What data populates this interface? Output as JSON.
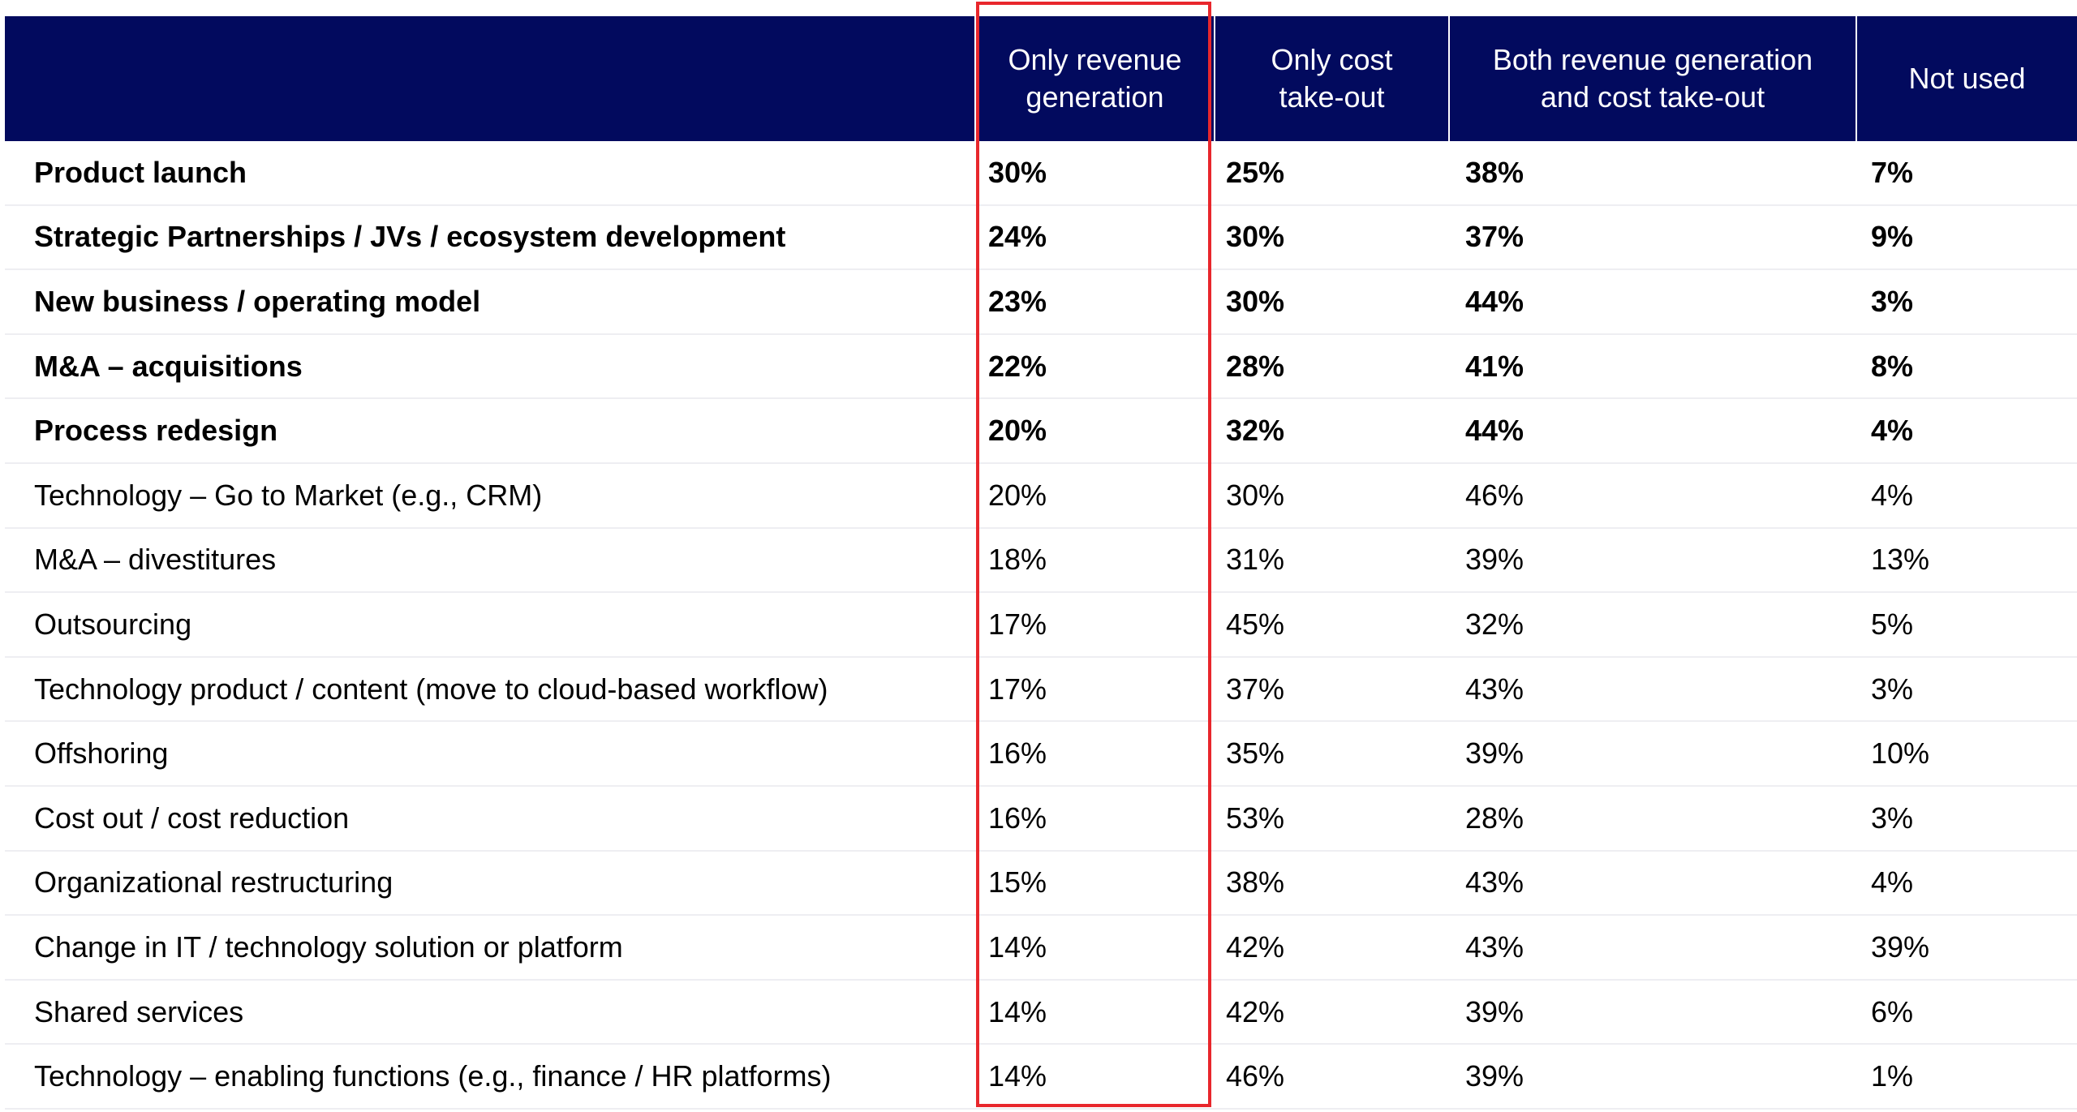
{
  "chart_data": {
    "type": "table",
    "columns": [
      "",
      "Only revenue generation",
      "Only cost take-out",
      "Both revenue generation and cost take-out",
      "Not used"
    ],
    "header_lines": [
      [
        ""
      ],
      [
        "Only revenue",
        "generation"
      ],
      [
        "Only cost",
        "take-out"
      ],
      [
        "Both revenue generation",
        "and cost take-out"
      ],
      [
        "Not used"
      ]
    ],
    "rows": [
      {
        "label": "Product launch",
        "values": [
          "30%",
          "25%",
          "38%",
          "7%"
        ],
        "bold": true
      },
      {
        "label": "Strategic Partnerships / JVs / ecosystem development",
        "values": [
          "24%",
          "30%",
          "37%",
          "9%"
        ],
        "bold": true
      },
      {
        "label": "New business / operating model",
        "values": [
          "23%",
          "30%",
          "44%",
          "3%"
        ],
        "bold": true
      },
      {
        "label": "M&A – acquisitions",
        "values": [
          "22%",
          "28%",
          "41%",
          "8%"
        ],
        "bold": true
      },
      {
        "label": "Process redesign",
        "values": [
          "20%",
          "32%",
          "44%",
          "4%"
        ],
        "bold": true
      },
      {
        "label": "Technology – Go to Market (e.g., CRM)",
        "values": [
          "20%",
          "30%",
          "46%",
          "4%"
        ],
        "bold": false
      },
      {
        "label": "M&A – divestitures",
        "values": [
          "18%",
          "31%",
          "39%",
          "13%"
        ],
        "bold": false
      },
      {
        "label": "Outsourcing",
        "values": [
          "17%",
          "45%",
          "32%",
          "5%"
        ],
        "bold": false
      },
      {
        "label": "Technology product / content (move to cloud-based workflow)",
        "values": [
          "17%",
          "37%",
          "43%",
          "3%"
        ],
        "bold": false
      },
      {
        "label": "Offshoring",
        "values": [
          "16%",
          "35%",
          "39%",
          "10%"
        ],
        "bold": false
      },
      {
        "label": "Cost out / cost reduction",
        "values": [
          "16%",
          "53%",
          "28%",
          "3%"
        ],
        "bold": false
      },
      {
        "label": "Organizational restructuring",
        "values": [
          "15%",
          "38%",
          "43%",
          "4%"
        ],
        "bold": false
      },
      {
        "label": "Change in IT / technology solution or platform",
        "values": [
          "14%",
          "42%",
          "43%",
          "39%"
        ],
        "bold": false
      },
      {
        "label": "Shared services",
        "values": [
          "14%",
          "42%",
          "39%",
          "6%"
        ],
        "bold": false
      },
      {
        "label": "Technology – enabling functions (e.g., finance / HR platforms)",
        "values": [
          "14%",
          "46%",
          "39%",
          "1%"
        ],
        "bold": false
      }
    ],
    "highlighted_column": "Only revenue generation",
    "colors": {
      "header_background": "#020a5e",
      "header_text": "#ffffff",
      "highlight_border": "#e8272c",
      "row_divider": "#eeeef2"
    }
  }
}
